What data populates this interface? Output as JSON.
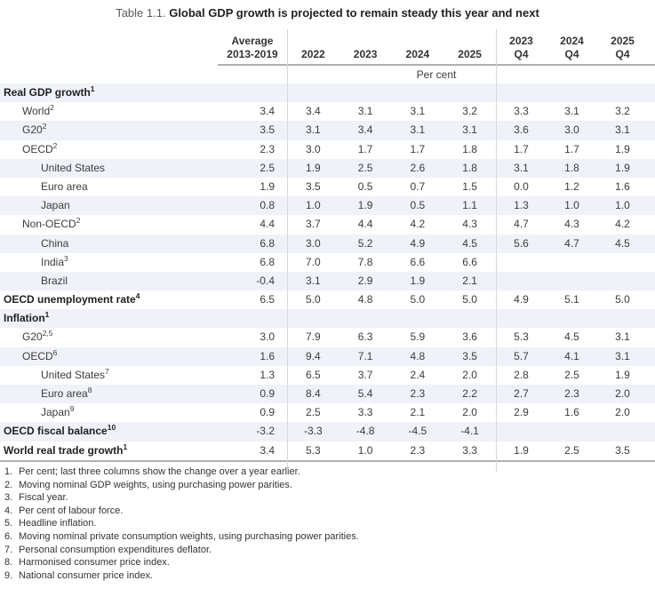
{
  "title": {
    "prefix": "Table 1.1.",
    "main": "Global GDP growth is projected to remain steady this year and next"
  },
  "header": {
    "average": {
      "line1": "Average",
      "line2": "2013-2019"
    },
    "years": [
      "2022",
      "2023",
      "2024",
      "2025"
    ],
    "quarters": [
      {
        "line1": "2023",
        "line2": "Q4"
      },
      {
        "line1": "2024",
        "line2": "Q4"
      },
      {
        "line1": "2025",
        "line2": "Q4"
      }
    ],
    "unit_label": "Per cent"
  },
  "rows": [
    {
      "label": "Real GDP growth",
      "sup": "1",
      "indent": 0,
      "bold": true,
      "shaded": true,
      "values": [
        "",
        "",
        "",
        "",
        "",
        "",
        "",
        ""
      ]
    },
    {
      "label": "World",
      "sup": "2",
      "indent": 1,
      "bold": false,
      "shaded": false,
      "values": [
        "3.4",
        "3.4",
        "3.1",
        "3.1",
        "3.2",
        "3.3",
        "3.1",
        "3.2"
      ]
    },
    {
      "label": "G20",
      "sup": "2",
      "indent": 1,
      "bold": false,
      "shaded": true,
      "values": [
        "3.5",
        "3.1",
        "3.4",
        "3.1",
        "3.1",
        "3.6",
        "3.0",
        "3.1"
      ]
    },
    {
      "label": "OECD",
      "sup": "2",
      "indent": 1,
      "bold": false,
      "shaded": false,
      "values": [
        "2.3",
        "3.0",
        "1.7",
        "1.7",
        "1.8",
        "1.7",
        "1.7",
        "1.9"
      ]
    },
    {
      "label": "United States",
      "sup": "",
      "indent": 2,
      "bold": false,
      "shaded": true,
      "values": [
        "2.5",
        "1.9",
        "2.5",
        "2.6",
        "1.8",
        "3.1",
        "1.8",
        "1.9"
      ]
    },
    {
      "label": "Euro area",
      "sup": "",
      "indent": 2,
      "bold": false,
      "shaded": false,
      "values": [
        "1.9",
        "3.5",
        "0.5",
        "0.7",
        "1.5",
        "0.0",
        "1.2",
        "1.6"
      ]
    },
    {
      "label": "Japan",
      "sup": "",
      "indent": 2,
      "bold": false,
      "shaded": true,
      "values": [
        "0.8",
        "1.0",
        "1.9",
        "0.5",
        "1.1",
        "1.3",
        "1.0",
        "1.0"
      ]
    },
    {
      "label": "Non-OECD",
      "sup": "2",
      "indent": 1,
      "bold": false,
      "shaded": false,
      "values": [
        "4.4",
        "3.7",
        "4.4",
        "4.2",
        "4.3",
        "4.7",
        "4.3",
        "4.2"
      ]
    },
    {
      "label": "China",
      "sup": "",
      "indent": 2,
      "bold": false,
      "shaded": true,
      "values": [
        "6.8",
        "3.0",
        "5.2",
        "4.9",
        "4.5",
        "5.6",
        "4.7",
        "4.5"
      ]
    },
    {
      "label": "India",
      "sup": "3",
      "indent": 2,
      "bold": false,
      "shaded": false,
      "values": [
        "6.8",
        "7.0",
        "7.8",
        "6.6",
        "6.6",
        "",
        "",
        ""
      ]
    },
    {
      "label": "Brazil",
      "sup": "",
      "indent": 2,
      "bold": false,
      "shaded": true,
      "values": [
        "-0.4",
        "3.1",
        "2.9",
        "1.9",
        "2.1",
        "",
        "",
        ""
      ]
    },
    {
      "label": "OECD unemployment rate",
      "sup": "4",
      "indent": 0,
      "bold": true,
      "shaded": false,
      "values": [
        "6.5",
        "5.0",
        "4.8",
        "5.0",
        "5.0",
        "4.9",
        "5.1",
        "5.0"
      ]
    },
    {
      "label": "Inflation",
      "sup": "1",
      "indent": 0,
      "bold": true,
      "shaded": true,
      "values": [
        "",
        "",
        "",
        "",
        "",
        "",
        "",
        ""
      ]
    },
    {
      "label": "G20",
      "sup": "2,5",
      "indent": 1,
      "bold": false,
      "shaded": false,
      "values": [
        "3.0",
        "7.9",
        "6.3",
        "5.9",
        "3.6",
        "5.3",
        "4.5",
        "3.1"
      ]
    },
    {
      "label": "OECD",
      "sup": "6",
      "indent": 1,
      "bold": false,
      "shaded": true,
      "values": [
        "1.6",
        "9.4",
        "7.1",
        "4.8",
        "3.5",
        "5.7",
        "4.1",
        "3.1"
      ]
    },
    {
      "label": "United States",
      "sup": "7",
      "indent": 2,
      "bold": false,
      "shaded": false,
      "values": [
        "1.3",
        "6.5",
        "3.7",
        "2.4",
        "2.0",
        "2.8",
        "2.5",
        "1.9"
      ]
    },
    {
      "label": "Euro area",
      "sup": "8",
      "indent": 2,
      "bold": false,
      "shaded": true,
      "values": [
        "0.9",
        "8.4",
        "5.4",
        "2.3",
        "2.2",
        "2.7",
        "2.3",
        "2.0"
      ]
    },
    {
      "label": "Japan",
      "sup": "9",
      "indent": 2,
      "bold": false,
      "shaded": false,
      "values": [
        "0.9",
        "2.5",
        "3.3",
        "2.1",
        "2.0",
        "2.9",
        "1.6",
        "2.0"
      ]
    },
    {
      "label": "OECD fiscal balance",
      "sup": "10",
      "indent": 0,
      "bold": true,
      "shaded": true,
      "values": [
        "-3.2",
        "-3.3",
        "-4.8",
        "-4.5",
        "-4.1",
        "",
        "",
        ""
      ]
    },
    {
      "label": "World real trade growth",
      "sup": "1",
      "indent": 0,
      "bold": true,
      "shaded": false,
      "values": [
        "3.4",
        "5.3",
        "1.0",
        "2.3",
        "3.3",
        "1.9",
        "2.5",
        "3.5"
      ]
    }
  ],
  "footnotes": [
    {
      "num": "1.",
      "text": "Per cent; last three columns show the change over a year earlier."
    },
    {
      "num": "2.",
      "text": "Moving nominal GDP weights, using purchasing power parities."
    },
    {
      "num": "3.",
      "text": "Fiscal year."
    },
    {
      "num": "4.",
      "text": "Per cent of labour force."
    },
    {
      "num": "5.",
      "text": "Headline inflation."
    },
    {
      "num": "6.",
      "text": "Moving nominal private consumption weights, using purchasing power parities."
    },
    {
      "num": "7.",
      "text": "Personal consumption expenditures deflator."
    },
    {
      "num": "8.",
      "text": "Harmonised consumer price index."
    },
    {
      "num": "9.",
      "text": "National consumer price index."
    }
  ],
  "colors": {
    "shade": "#f0f2f9",
    "rule": "#b0b0b0",
    "grid": "#d8d8d8",
    "text": "#3c3c3c"
  }
}
